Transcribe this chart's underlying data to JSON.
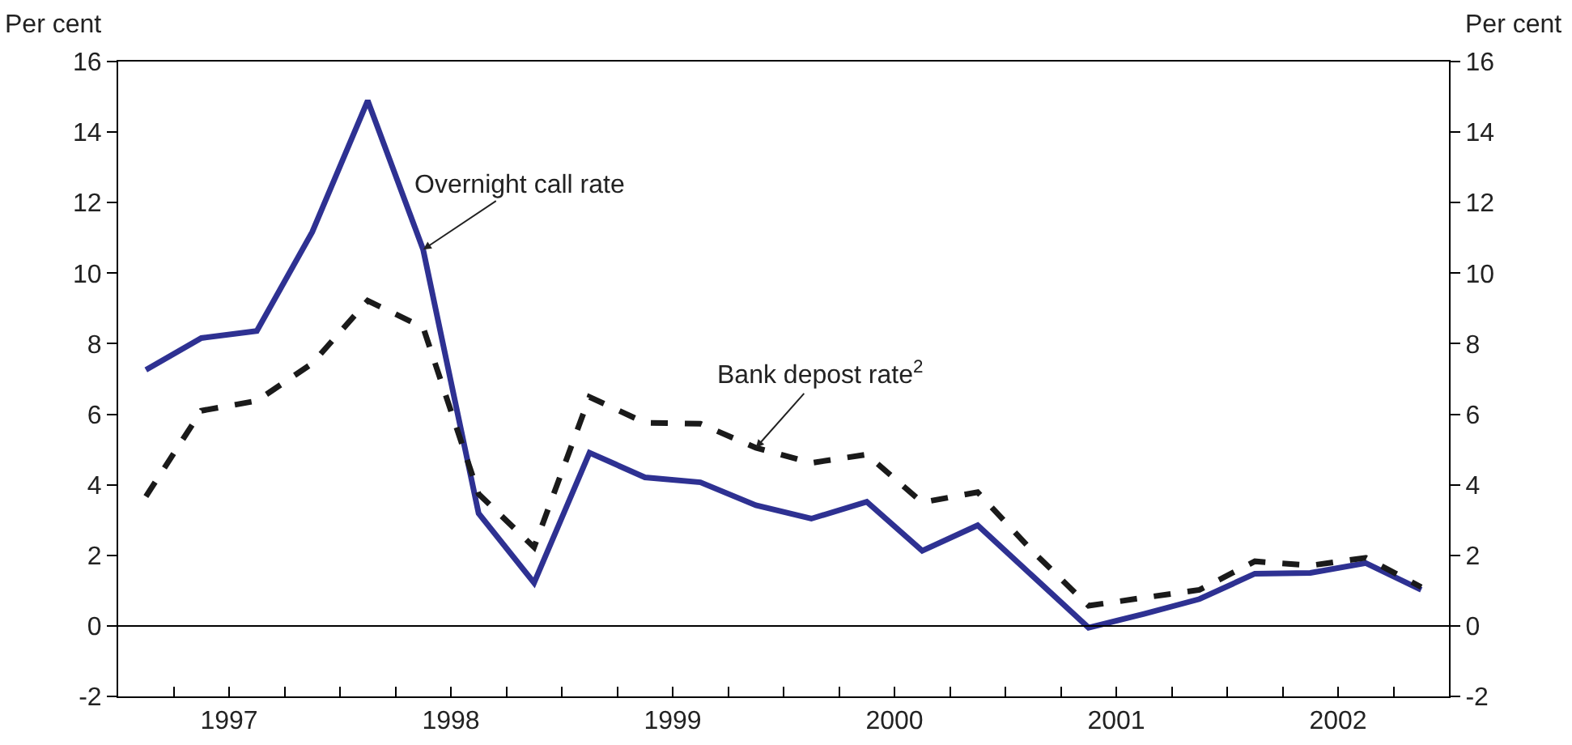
{
  "chart_data": {
    "type": "line",
    "ylabel": "Per cent",
    "y2label": "Per cent",
    "x": [
      1997.125,
      1997.375,
      1997.625,
      1997.875,
      1998.125,
      1998.375,
      1998.625,
      1998.875,
      1999.125,
      1999.375,
      1999.625,
      1999.875,
      2000.125,
      2000.375,
      2000.625,
      2000.875,
      2001.125,
      2001.375,
      2001.625,
      2001.875,
      2002.125,
      2002.375,
      2002.625,
      2002.875
    ],
    "series": [
      {
        "color": "#2e3192",
        "line_style": "solid",
        "values": [
          7.26,
          8.16,
          8.36,
          11.17,
          14.89,
          10.67,
          3.19,
          1.22,
          4.91,
          4.21,
          4.07,
          3.42,
          3.04,
          3.52,
          2.13,
          2.85,
          1.4,
          -0.05,
          0.34,
          0.76,
          1.48,
          1.5,
          1.78,
          1.02
        ]
      },
      {
        "color": "#1a1a1a",
        "line_style": "dashed",
        "values": [
          3.67,
          6.1,
          6.38,
          7.44,
          9.22,
          8.46,
          3.74,
          2.23,
          6.49,
          5.76,
          5.73,
          5.05,
          4.62,
          4.86,
          3.5,
          3.79,
          2.1,
          0.57,
          0.8,
          1.02,
          1.83,
          1.71,
          1.93,
          1.1
        ]
      }
    ],
    "annotations": [
      {
        "text": "Overnight call rate",
        "x": 1998.375,
        "y": 10.67
      },
      {
        "text": "Bank depost rate$^{2}$",
        "x": 1999.875,
        "y": 5.05
      }
    ],
    "xlim": [
      1997,
      2003
    ],
    "xticks": [
      {
        "value": 1997.25,
        "label": null
      },
      {
        "value": 1997.5,
        "label": "1997"
      },
      {
        "value": 1997.75,
        "label": null
      },
      {
        "value": 1998,
        "label": null
      },
      {
        "value": 1998.25,
        "label": null
      },
      {
        "value": 1998.5,
        "label": "1998"
      },
      {
        "value": 1998.75,
        "label": null
      },
      {
        "value": 1999,
        "label": null
      },
      {
        "value": 1999.25,
        "label": null
      },
      {
        "value": 1999.5,
        "label": "1999"
      },
      {
        "value": 1999.75,
        "label": null
      },
      {
        "value": 2000,
        "label": null
      },
      {
        "value": 2000.25,
        "label": null
      },
      {
        "value": 2000.5,
        "label": "2000"
      },
      {
        "value": 2000.75,
        "label": null
      },
      {
        "value": 2001,
        "label": null
      },
      {
        "value": 2001.25,
        "label": null
      },
      {
        "value": 2001.5,
        "label": "2001"
      },
      {
        "value": 2001.75,
        "label": null
      },
      {
        "value": 2002,
        "label": null
      },
      {
        "value": 2002.25,
        "label": null
      },
      {
        "value": 2002.5,
        "label": "2002"
      },
      {
        "value": 2002.75,
        "label": null
      }
    ],
    "ylim": [
      -2,
      16
    ],
    "yticks": [
      -2,
      0,
      2,
      4,
      6,
      8,
      10,
      12,
      14,
      16
    ],
    "y2lim": [
      -2,
      16
    ],
    "y2ticks": [
      -2,
      0,
      2,
      4,
      6,
      8,
      10,
      12,
      14,
      16
    ],
    "ref_lines": [
      {
        "axis": "y",
        "value": 0,
        "color": "#000000"
      }
    ],
    "grid": false,
    "marker": "none"
  }
}
